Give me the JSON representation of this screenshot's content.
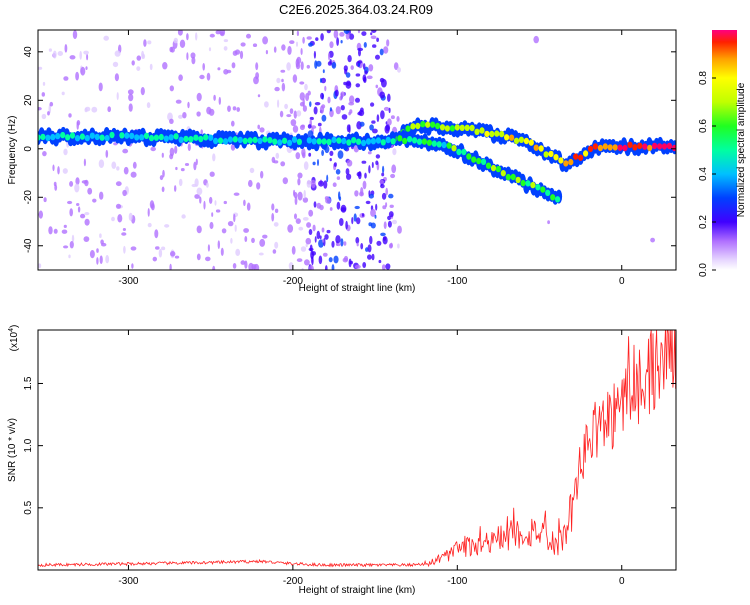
{
  "title": "C2E6.2025.364.03.24.R09",
  "chart_data": [
    {
      "type": "heatmap",
      "title": "",
      "xlabel": "Height of straight line (km)",
      "ylabel": "Frequency (Hz)",
      "xlim": [
        -355,
        33
      ],
      "ylim": [
        -50,
        49
      ],
      "xticks": [
        -300,
        -200,
        -100,
        0
      ],
      "xtick_labels": [
        "-300",
        "-200",
        "-100",
        "0"
      ],
      "yticks": [
        -40,
        -20,
        0,
        20,
        40
      ],
      "ytick_labels": [
        "-40",
        "-20",
        "0",
        "20",
        "40"
      ],
      "colorbar": {
        "label": "Normalized spectral amplitude",
        "range": [
          0,
          1
        ],
        "ticks": [
          0,
          0.2,
          0.4,
          0.6,
          0.8
        ],
        "tick_labels": [
          "0.0",
          "0.2",
          "0.4",
          "0.6",
          "0.8"
        ]
      },
      "ridges": [
        {
          "name": "main_ridge",
          "x": [
            -355,
            -300,
            -250,
            -200,
            -170,
            -140,
            -125,
            -110,
            -90,
            -70,
            -55,
            -45,
            -35,
            -25,
            -15,
            -5,
            5,
            15,
            33
          ],
          "y": [
            5,
            5,
            4,
            3,
            3,
            3,
            10,
            9,
            8,
            5,
            2,
            -2,
            -6,
            -3,
            1,
            1,
            1,
            1,
            1
          ]
        },
        {
          "name": "lower_branch",
          "x": [
            -135,
            -120,
            -105,
            -90,
            -75,
            -60,
            -45,
            -38
          ],
          "y": [
            4,
            3,
            1,
            -4,
            -9,
            -14,
            -18,
            -21
          ]
        }
      ]
    },
    {
      "type": "line",
      "title": "",
      "xlabel": "Height of straight line (km)",
      "ylabel": "SNR (10 * v/v)",
      "scale_label": "(x10",
      "scale_exponent": "4",
      "scale_suffix": ")",
      "xlim": [
        -355,
        33
      ],
      "ylim": [
        0,
        1.93
      ],
      "xticks": [
        -300,
        -200,
        -100,
        0
      ],
      "xtick_labels": [
        "-300",
        "-200",
        "-100",
        "0"
      ],
      "yticks": [
        0.5,
        1.0,
        1.5
      ],
      "ytick_labels": [
        "0.5",
        "1.0",
        "1.5"
      ],
      "series": [
        {
          "name": "SNR",
          "color": "#ff2020",
          "x": [
            -355,
            -300,
            -250,
            -220,
            -200,
            -180,
            -150,
            -130,
            -118,
            -110,
            -100,
            -90,
            -80,
            -70,
            -60,
            -50,
            -40,
            -35,
            -30,
            -25,
            -20,
            -15,
            -10,
            -5,
            0,
            5,
            10,
            15,
            20,
            25,
            33
          ],
          "y": [
            0.04,
            0.05,
            0.06,
            0.07,
            0.05,
            0.04,
            0.04,
            0.04,
            0.05,
            0.09,
            0.16,
            0.2,
            0.24,
            0.27,
            0.3,
            0.32,
            0.2,
            0.26,
            0.5,
            0.85,
            1.05,
            1.15,
            1.2,
            1.25,
            1.35,
            1.4,
            1.5,
            1.55,
            1.65,
            1.72,
            1.82
          ]
        }
      ]
    }
  ]
}
